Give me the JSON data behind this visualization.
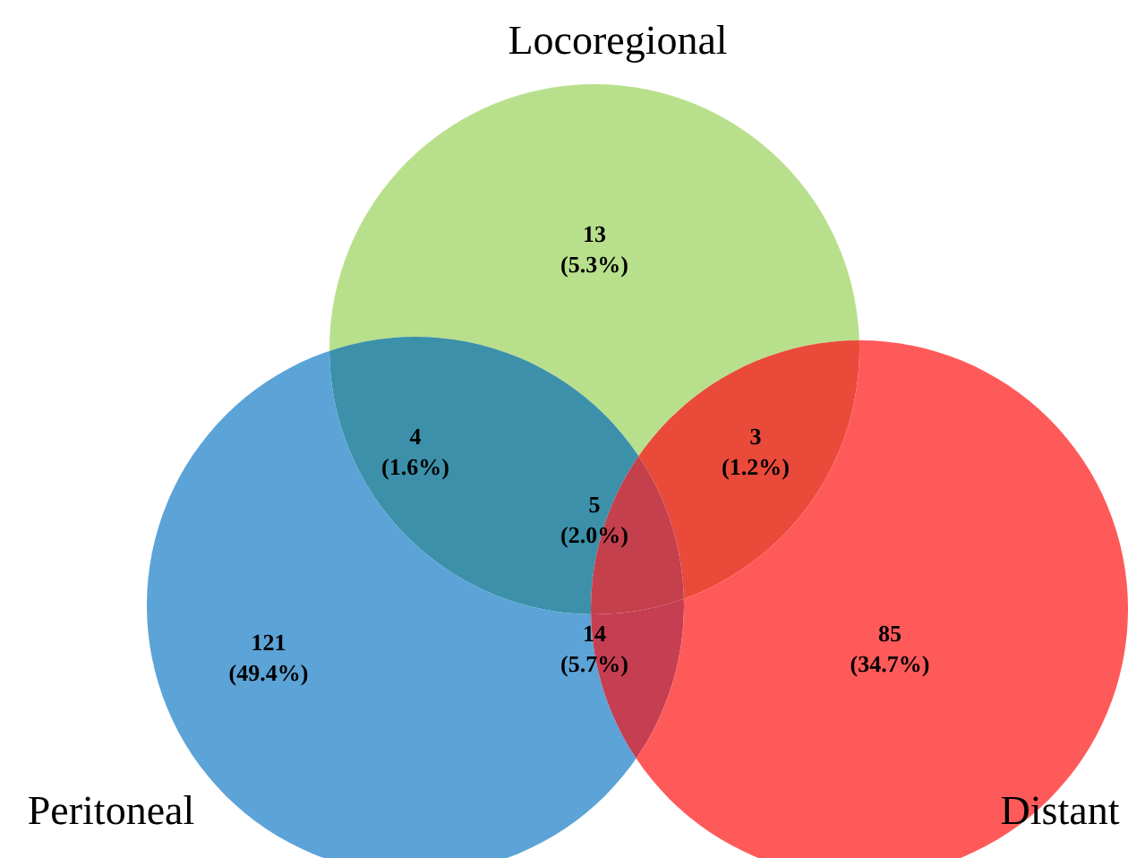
{
  "chart_data": {
    "type": "other",
    "annotations": [
      "Locoregional",
      "Peritoneal",
      "Distant"
    ],
    "categories": [
      null,
      null,
      null,
      null,
      null,
      null,
      null
    ],
    "values": [
      13,
      4,
      3,
      5,
      121,
      14,
      85
    ],
    "value_labels": [
      "13 (5.3%)",
      "4 (1.6%)",
      "3 (1.2%)",
      "5 (2.0%)",
      "121 (49.4%)",
      "14 (5.7%)",
      "85 (34.7%)"
    ],
    "colors": [
      "#b8e08c",
      "#3c90aa",
      "#e94a3a",
      "#c4404c",
      "#5ca3d7",
      "#c53e52",
      "#ff5a5a"
    ]
  }
}
